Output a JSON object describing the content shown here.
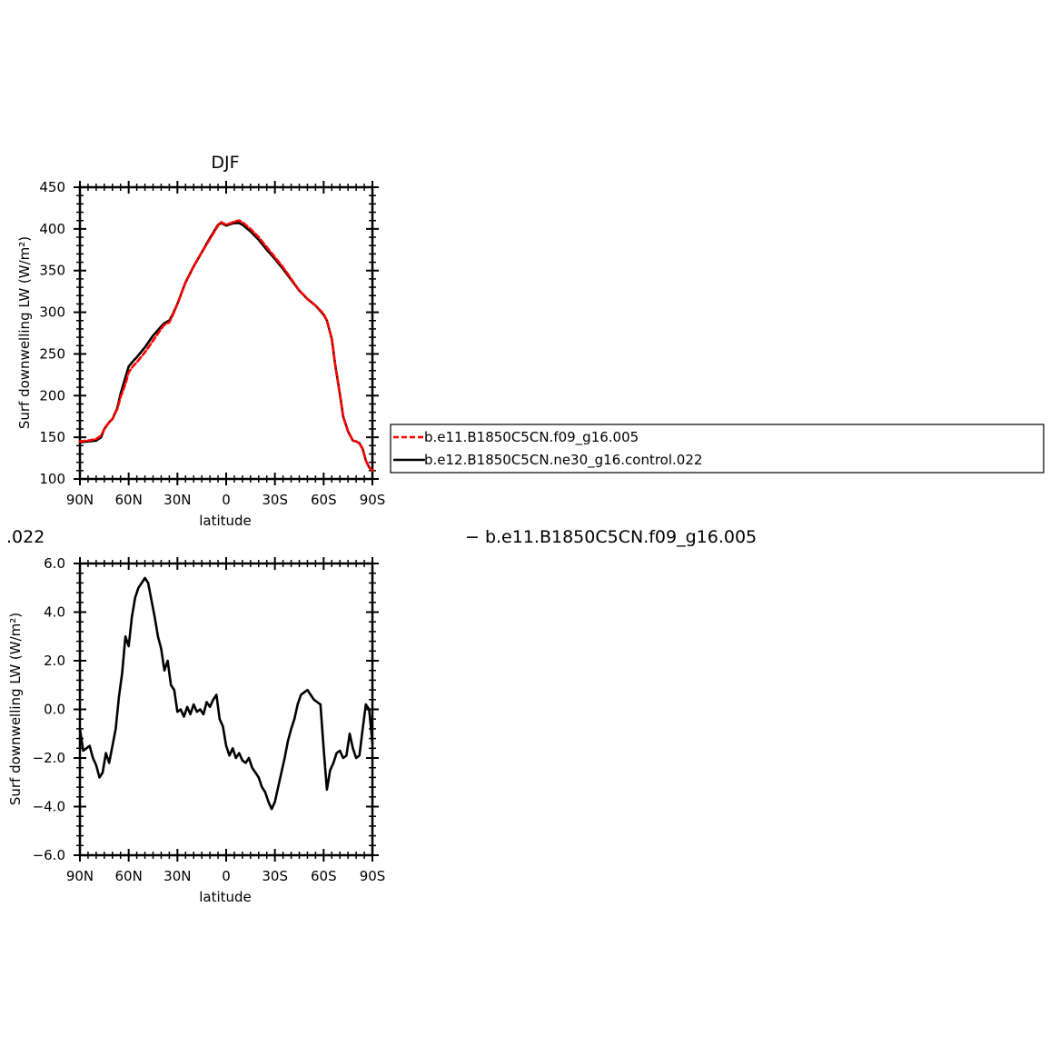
{
  "chart_data": [
    {
      "type": "line",
      "title": "DJF",
      "xlabel": "latitude",
      "ylabel": "Surf downwelling LW (W/m²)",
      "xlim": [
        90,
        -90
      ],
      "ylim": [
        100,
        450
      ],
      "xticks": [
        90,
        60,
        30,
        0,
        -30,
        -60,
        -90
      ],
      "xticklabels": [
        "90N",
        "60N",
        "30N",
        "0",
        "30S",
        "60S",
        "90S"
      ],
      "yticks": [
        100,
        150,
        200,
        250,
        300,
        350,
        400,
        450
      ],
      "yticklabels": [
        "100",
        "150",
        "200",
        "250",
        "300",
        "350",
        "400",
        "450"
      ],
      "legend_position": "right",
      "series": [
        {
          "name": "b.e11.B1850C5CN.f09_g16.005",
          "color": "#ff0000",
          "dash": "dashed",
          "x": [
            90,
            85,
            80,
            77,
            75,
            72,
            70,
            67,
            65,
            62,
            60,
            57,
            55,
            50,
            45,
            40,
            38,
            35,
            33,
            30,
            25,
            20,
            15,
            10,
            5,
            3,
            0,
            -3,
            -5,
            -8,
            -10,
            -15,
            -20,
            -25,
            -30,
            -35,
            -40,
            -45,
            -50,
            -55,
            -60,
            -62,
            -65,
            -67,
            -70,
            -72,
            -75,
            -78,
            -80,
            -82,
            -84,
            -86,
            -88,
            -90
          ],
          "y": [
            145,
            146,
            148,
            152,
            160,
            168,
            172,
            184,
            198,
            214,
            228,
            236,
            240,
            252,
            266,
            280,
            285,
            288,
            296,
            310,
            336,
            355,
            372,
            388,
            404,
            408,
            405,
            407,
            409,
            410,
            408,
            400,
            390,
            378,
            366,
            354,
            340,
            326,
            316,
            308,
            298,
            290,
            268,
            238,
            202,
            175,
            157,
            146,
            145,
            143,
            136,
            122,
            114,
            110
          ]
        },
        {
          "name": "b.e12.B1850C5CN.ne30_g16.control.022",
          "color": "#000000",
          "dash": "solid",
          "x": [
            90,
            85,
            80,
            77,
            75,
            72,
            70,
            67,
            65,
            62,
            60,
            57,
            55,
            50,
            45,
            40,
            38,
            35,
            33,
            30,
            25,
            20,
            15,
            10,
            5,
            3,
            0,
            -3,
            -5,
            -8,
            -10,
            -15,
            -20,
            -25,
            -30,
            -35,
            -40,
            -45,
            -50,
            -55,
            -60,
            -62,
            -65,
            -67,
            -70,
            -72,
            -75,
            -78,
            -80,
            -82,
            -84,
            -86,
            -88,
            -90
          ],
          "y": [
            144,
            145,
            146,
            150,
            160,
            168,
            172,
            185,
            202,
            222,
            235,
            242,
            246,
            258,
            272,
            283,
            287,
            290,
            297,
            310,
            336,
            355,
            372,
            389,
            405,
            407,
            404,
            406,
            407,
            407,
            405,
            397,
            387,
            375,
            364,
            352,
            339,
            326,
            316,
            308,
            297,
            290,
            268,
            238,
            202,
            175,
            157,
            146,
            145,
            143,
            136,
            122,
            114,
            110
          ]
        }
      ]
    },
    {
      "type": "line",
      "title": "",
      "xlabel": "latitude",
      "ylabel": "Surf downwelling LW (W/m²)",
      "xlim": [
        90,
        -90
      ],
      "ylim": [
        -6,
        6
      ],
      "xticks": [
        90,
        60,
        30,
        0,
        -30,
        -60,
        -90
      ],
      "xticklabels": [
        "90N",
        "60N",
        "30N",
        "0",
        "30S",
        "60S",
        "90S"
      ],
      "yticks": [
        -6,
        -4,
        -2,
        0,
        2,
        4,
        6
      ],
      "yticklabels": [
        "−6.0",
        "−4.0",
        "−2.0",
        "0.0",
        "2.0",
        "4.0",
        "6.0"
      ],
      "series": [
        {
          "color": "#000000",
          "dash": "solid",
          "x": [
            90,
            88,
            86,
            84,
            82,
            80,
            78,
            76,
            74,
            72,
            70,
            68,
            66,
            64,
            62,
            60,
            58,
            56,
            54,
            52,
            50,
            48,
            46,
            44,
            42,
            40,
            38,
            36,
            34,
            32,
            30,
            28,
            26,
            24,
            22,
            20,
            18,
            16,
            14,
            12,
            10,
            8,
            6,
            4,
            2,
            0,
            -2,
            -4,
            -6,
            -8,
            -10,
            -12,
            -14,
            -16,
            -18,
            -20,
            -22,
            -24,
            -26,
            -28,
            -30,
            -32,
            -34,
            -36,
            -38,
            -40,
            -42,
            -44,
            -46,
            -48,
            -50,
            -52,
            -54,
            -56,
            -58,
            -60,
            -62,
            -64,
            -66,
            -68,
            -70,
            -72,
            -74,
            -76,
            -78,
            -80,
            -82,
            -84,
            -86,
            -88,
            -90
          ],
          "y": [
            -0.8,
            -1.7,
            -1.6,
            -1.5,
            -2.0,
            -2.3,
            -2.8,
            -2.6,
            -1.8,
            -2.2,
            -1.5,
            -0.8,
            0.5,
            1.5,
            3.0,
            2.6,
            3.8,
            4.6,
            5.0,
            5.2,
            5.4,
            5.2,
            4.5,
            3.8,
            3.0,
            2.5,
            1.6,
            2.0,
            1.0,
            0.8,
            -0.1,
            0.0,
            -0.3,
            0.1,
            -0.2,
            0.2,
            -0.1,
            0.0,
            -0.2,
            0.3,
            0.1,
            0.4,
            0.6,
            -0.4,
            -0.7,
            -1.5,
            -1.9,
            -1.6,
            -2.0,
            -1.8,
            -2.1,
            -2.2,
            -2.0,
            -2.4,
            -2.6,
            -2.8,
            -3.2,
            -3.4,
            -3.8,
            -4.1,
            -3.8,
            -3.2,
            -2.6,
            -2.0,
            -1.3,
            -0.8,
            -0.4,
            0.2,
            0.6,
            0.7,
            0.8,
            0.6,
            0.4,
            0.3,
            0.2,
            -1.6,
            -3.3,
            -2.5,
            -2.2,
            -1.8,
            -1.7,
            -2.0,
            -1.9,
            -1.0,
            -1.6,
            -2.0,
            -1.9,
            -0.8,
            0.2,
            0.0,
            -1.4
          ]
        }
      ]
    }
  ],
  "fragments": {
    "left_text": ".022",
    "right_text": "− b.e11.B1850C5CN.f09_g16.005"
  }
}
